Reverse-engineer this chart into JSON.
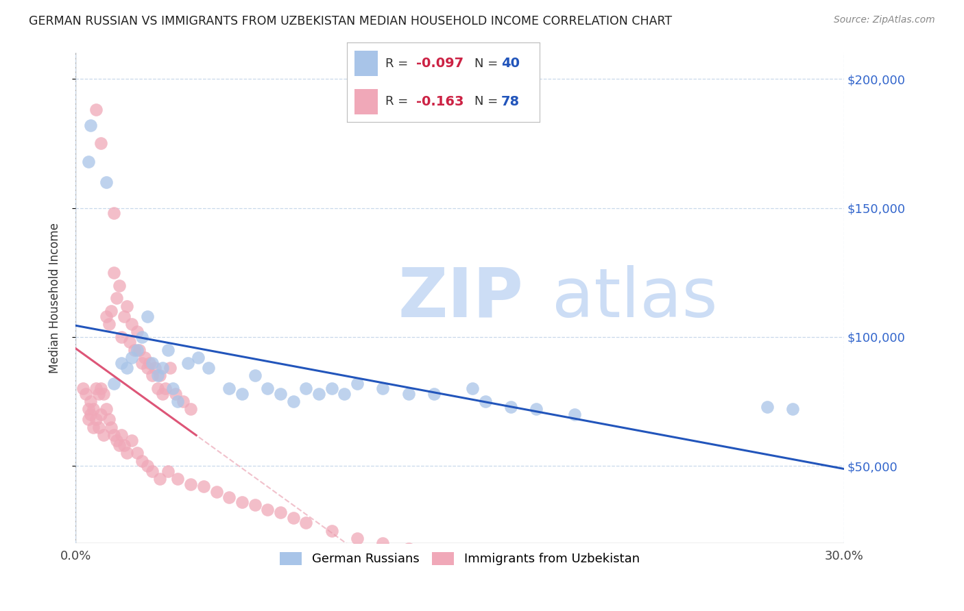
{
  "title": "GERMAN RUSSIAN VS IMMIGRANTS FROM UZBEKISTAN MEDIAN HOUSEHOLD INCOME CORRELATION CHART",
  "source": "Source: ZipAtlas.com",
  "ylabel": "Median Household Income",
  "xlim": [
    0.0,
    0.3
  ],
  "ylim": [
    20000,
    210000
  ],
  "yticks": [
    50000,
    100000,
    150000,
    200000
  ],
  "ytick_labels": [
    "$50,000",
    "$100,000",
    "$150,000",
    "$200,000"
  ],
  "xticks": [
    0.0,
    0.3
  ],
  "xtick_labels": [
    "0.0%",
    "30.0%"
  ],
  "legend_labels": [
    "German Russians",
    "Immigrants from Uzbekistan"
  ],
  "blue_color": "#a8c4e8",
  "pink_color": "#f0a8b8",
  "blue_line_color": "#2255bb",
  "pink_line_color": "#dd5577",
  "pink_dashed_color": "#e899aa",
  "watermark": "ZIPatlas",
  "watermark_color": "#ccddf5",
  "blue_scatter_x": [
    0.005,
    0.006,
    0.012,
    0.015,
    0.018,
    0.02,
    0.022,
    0.024,
    0.026,
    0.028,
    0.03,
    0.032,
    0.034,
    0.036,
    0.038,
    0.04,
    0.044,
    0.048,
    0.052,
    0.06,
    0.065,
    0.07,
    0.075,
    0.08,
    0.085,
    0.09,
    0.095,
    0.1,
    0.105,
    0.11,
    0.12,
    0.13,
    0.14,
    0.155,
    0.16,
    0.17,
    0.18,
    0.195,
    0.27,
    0.28
  ],
  "blue_scatter_y": [
    168000,
    182000,
    160000,
    82000,
    90000,
    88000,
    92000,
    95000,
    100000,
    108000,
    90000,
    85000,
    88000,
    95000,
    80000,
    75000,
    90000,
    92000,
    88000,
    80000,
    78000,
    85000,
    80000,
    78000,
    75000,
    80000,
    78000,
    80000,
    78000,
    82000,
    80000,
    78000,
    78000,
    80000,
    75000,
    73000,
    72000,
    70000,
    73000,
    72000
  ],
  "pink_scatter_x": [
    0.003,
    0.004,
    0.005,
    0.006,
    0.007,
    0.008,
    0.008,
    0.009,
    0.01,
    0.01,
    0.011,
    0.012,
    0.013,
    0.014,
    0.015,
    0.015,
    0.016,
    0.017,
    0.018,
    0.019,
    0.02,
    0.021,
    0.022,
    0.023,
    0.024,
    0.025,
    0.026,
    0.027,
    0.028,
    0.029,
    0.03,
    0.031,
    0.032,
    0.033,
    0.034,
    0.035,
    0.037,
    0.039,
    0.042,
    0.045,
    0.005,
    0.006,
    0.007,
    0.008,
    0.009,
    0.01,
    0.011,
    0.012,
    0.013,
    0.014,
    0.015,
    0.016,
    0.017,
    0.018,
    0.019,
    0.02,
    0.022,
    0.024,
    0.026,
    0.028,
    0.03,
    0.033,
    0.036,
    0.04,
    0.045,
    0.05,
    0.055,
    0.06,
    0.065,
    0.07,
    0.075,
    0.08,
    0.085,
    0.09,
    0.1,
    0.11,
    0.12,
    0.13
  ],
  "pink_scatter_y": [
    80000,
    78000,
    72000,
    75000,
    72000,
    80000,
    188000,
    78000,
    175000,
    80000,
    78000,
    108000,
    105000,
    110000,
    148000,
    125000,
    115000,
    120000,
    100000,
    108000,
    112000,
    98000,
    105000,
    95000,
    102000,
    95000,
    90000,
    92000,
    88000,
    90000,
    85000,
    88000,
    80000,
    85000,
    78000,
    80000,
    88000,
    78000,
    75000,
    72000,
    68000,
    70000,
    65000,
    68000,
    65000,
    70000,
    62000,
    72000,
    68000,
    65000,
    62000,
    60000,
    58000,
    62000,
    58000,
    55000,
    60000,
    55000,
    52000,
    50000,
    48000,
    45000,
    48000,
    45000,
    43000,
    42000,
    40000,
    38000,
    36000,
    35000,
    33000,
    32000,
    30000,
    28000,
    25000,
    22000,
    20000,
    18000
  ]
}
